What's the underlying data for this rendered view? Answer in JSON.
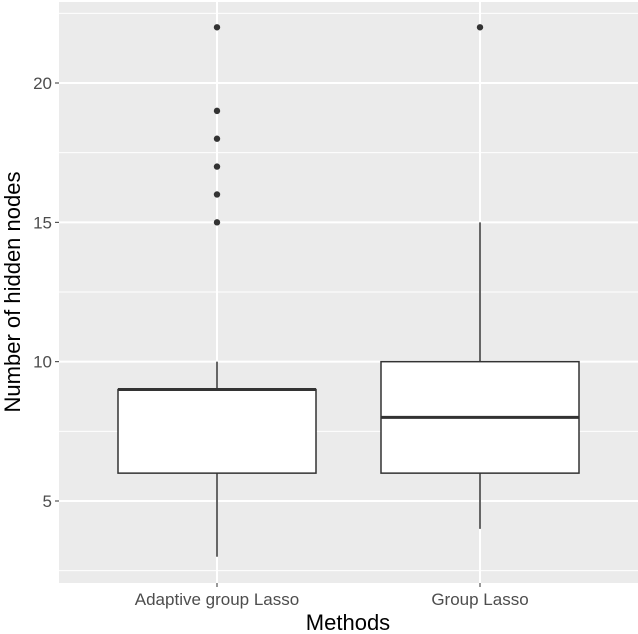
{
  "chart_data": {
    "type": "box",
    "title": "",
    "xlabel": "Methods",
    "ylabel": "Number of hidden nodes",
    "categories": [
      "Adaptive group Lasso",
      "Group Lasso"
    ],
    "ylim": [
      2.2,
      22.9
    ],
    "yticks": [
      5,
      10,
      15,
      20
    ],
    "ytick_labels": [
      "5",
      "10",
      "15",
      "20"
    ],
    "grid": true,
    "legend": null,
    "series": [
      {
        "name": "Adaptive group Lasso",
        "whisker_low": 3,
        "q1": 6,
        "median": 9,
        "q3": 9,
        "whisker_high": 10,
        "outliers": [
          15,
          16,
          17,
          18,
          19,
          22
        ]
      },
      {
        "name": "Group Lasso",
        "whisker_low": 4,
        "q1": 6,
        "median": 8,
        "q3": 10,
        "whisker_high": 15,
        "outliers": [
          22
        ]
      }
    ]
  },
  "colors": {
    "panel_bg": "#ebebeb",
    "grid": "#ffffff",
    "box_fill": "#ffffff",
    "box_line": "#333333",
    "point": "#333333"
  }
}
